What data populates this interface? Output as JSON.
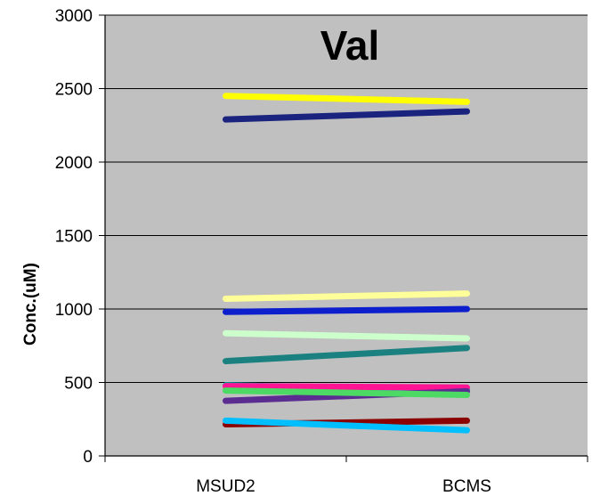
{
  "chart_data": {
    "type": "line",
    "title": "Val",
    "ylabel": "Conc.(uM)",
    "xlabel": "",
    "categories": [
      "MSUD2",
      "BCMS"
    ],
    "ylim": [
      0,
      3000
    ],
    "yticks": [
      0,
      500,
      1000,
      1500,
      2000,
      2500,
      3000
    ],
    "grid": true,
    "legend": "none",
    "plot_background": "#c0c0c0",
    "series": [
      {
        "color": "#ffff00",
        "values": [
          2450,
          2410
        ]
      },
      {
        "color": "#1a237e",
        "values": [
          2290,
          2345
        ]
      },
      {
        "color": "#ffff99",
        "values": [
          1070,
          1105
        ]
      },
      {
        "color": "#0d1fcc",
        "values": [
          980,
          1000
        ]
      },
      {
        "color": "#ccffcc",
        "values": [
          835,
          800
        ]
      },
      {
        "color": "#1b8080",
        "values": [
          645,
          735
        ]
      },
      {
        "color": "#00c8c8",
        "values": [
          480,
          450
        ]
      },
      {
        "color": "#ff1493",
        "values": [
          475,
          465
        ]
      },
      {
        "color": "#5c2d91",
        "values": [
          375,
          440
        ]
      },
      {
        "color": "#4cd964",
        "values": [
          445,
          415
        ]
      },
      {
        "color": "#8b0000",
        "values": [
          215,
          240
        ]
      },
      {
        "color": "#00bfff",
        "values": [
          240,
          175
        ]
      }
    ]
  }
}
